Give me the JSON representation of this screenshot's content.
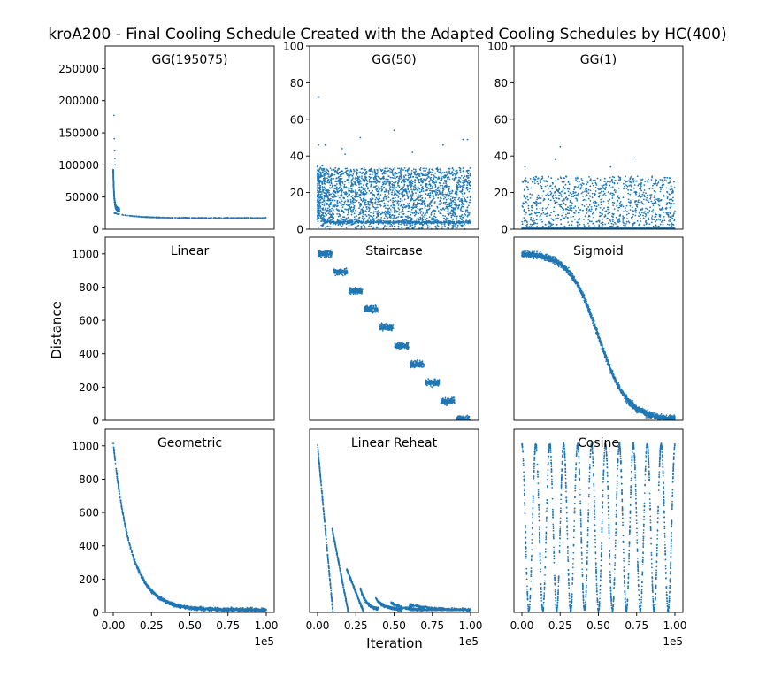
{
  "figure": {
    "title": "kroA200 - Final Cooling Schedule Created with the Adapted Cooling Schedules by HC(400)",
    "ylabel": "Distance",
    "xlabel": "Iteration",
    "x_offset_label": "1e5",
    "point_color": "#1f77b4"
  },
  "chart_data": [
    {
      "type": "scatter",
      "title": "GG(195075)",
      "pattern": "gg-large",
      "xlim": [
        0,
        100000
      ],
      "ylim": [
        0,
        285000
      ],
      "yticks": [
        0,
        50000,
        100000,
        150000,
        200000,
        250000
      ],
      "ytick_labels": [
        "0",
        "50000",
        "100000",
        "150000",
        "200000",
        "250000"
      ]
    },
    {
      "type": "scatter",
      "title": "GG(50)",
      "pattern": "gg-mid",
      "xlim": [
        0,
        100000
      ],
      "ylim": [
        0,
        100
      ],
      "yticks": [
        0,
        20,
        40,
        60,
        80,
        100
      ],
      "ytick_labels": [
        "0",
        "20",
        "40",
        "60",
        "80",
        "100"
      ]
    },
    {
      "type": "scatter",
      "title": "GG(1)",
      "pattern": "gg-small",
      "xlim": [
        0,
        100000
      ],
      "ylim": [
        0,
        100
      ],
      "yticks": [
        0,
        20,
        40,
        60,
        80,
        100
      ],
      "ytick_labels": [
        "0",
        "20",
        "40",
        "60",
        "80",
        "100"
      ]
    },
    {
      "type": "scatter",
      "title": "Linear",
      "pattern": "empty",
      "xlim": [
        0,
        100000
      ],
      "ylim": [
        0,
        1100
      ],
      "yticks": [
        0,
        200,
        400,
        600,
        800,
        1000
      ],
      "ytick_labels": [
        "0",
        "200",
        "400",
        "600",
        "800",
        "1000"
      ]
    },
    {
      "type": "scatter",
      "title": "Staircase",
      "pattern": "staircase",
      "xlim": [
        0,
        100000
      ],
      "ylim": [
        0,
        1100
      ]
    },
    {
      "type": "scatter",
      "title": "Sigmoid",
      "pattern": "sigmoid",
      "xlim": [
        0,
        100000
      ],
      "ylim": [
        0,
        1100
      ]
    },
    {
      "type": "scatter",
      "title": "Geometric",
      "pattern": "geometric",
      "xlim": [
        0,
        100000
      ],
      "ylim": [
        0,
        1100
      ],
      "yticks": [
        0,
        200,
        400,
        600,
        800,
        1000
      ],
      "ytick_labels": [
        "0",
        "200",
        "400",
        "600",
        "800",
        "1000"
      ],
      "xticks": [
        0,
        25000,
        50000,
        75000,
        100000
      ],
      "xtick_labels": [
        "0.00",
        "0.25",
        "0.50",
        "0.75",
        "1.00"
      ]
    },
    {
      "type": "scatter",
      "title": "Linear Reheat",
      "pattern": "reheat",
      "xlim": [
        0,
        100000
      ],
      "ylim": [
        0,
        1100
      ],
      "xticks": [
        0,
        25000,
        50000,
        75000,
        100000
      ],
      "xtick_labels": [
        "0.00",
        "0.25",
        "0.50",
        "0.75",
        "1.00"
      ]
    },
    {
      "type": "scatter",
      "title": "Cosine",
      "pattern": "cosine",
      "xlim": [
        0,
        100000
      ],
      "ylim": [
        0,
        1100
      ],
      "xticks": [
        0,
        25000,
        50000,
        75000,
        100000
      ],
      "xtick_labels": [
        "0.00",
        "0.25",
        "0.50",
        "0.75",
        "1.00"
      ]
    }
  ]
}
